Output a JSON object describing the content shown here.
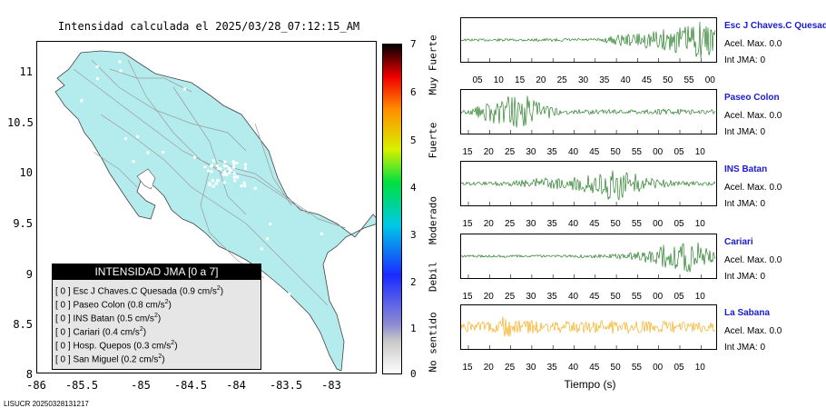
{
  "title": "Intensidad calculada el 2025/03/28_07:12:15_AM",
  "footer": "LISUCR 20250328131217",
  "map": {
    "y_ticks": [
      "11",
      "10.5",
      "10",
      "9.5",
      "9",
      "8.5",
      "8"
    ],
    "x_ticks": [
      "-86",
      "-85.5",
      "-85",
      "-84.5",
      "-84",
      "-83.5",
      "-83"
    ],
    "land_color": "#b4ecee",
    "road_color": "#9a9a9a"
  },
  "legend": {
    "header": "INTENSIDAD JMA [0 a 7]",
    "rows": [
      {
        "bracket": "[ 0 ]",
        "name": "Esc J Chaves.C Quesada",
        "value": "(0.9 cm/s",
        "sup": "2",
        "close": ")"
      },
      {
        "bracket": "[ 0 ]",
        "name": "Paseo Colon",
        "value": "(0.8 cm/s",
        "sup": "2",
        "close": ")"
      },
      {
        "bracket": "[ 0 ]",
        "name": "INS Batan",
        "value": "(0.5 cm/s",
        "sup": "2",
        "close": ")"
      },
      {
        "bracket": "[ 0 ]",
        "name": "Cariari",
        "value": "(0.4 cm/s",
        "sup": "2",
        "close": ")"
      },
      {
        "bracket": "[ 0 ]",
        "name": "Hosp. Quepos",
        "value": "(0.3 cm/s",
        "sup": "2",
        "close": ")"
      },
      {
        "bracket": "[ 0 ]",
        "name": "San Miguel",
        "value": "(0.2 cm/s",
        "sup": "2",
        "close": ")"
      }
    ]
  },
  "colorbar": {
    "ticks": [
      "7",
      "6",
      "5",
      "4",
      "3",
      "2",
      "1",
      "0"
    ],
    "labels": [
      "Muy Fuerte",
      "Fuerte",
      "Moderado",
      "Debil",
      "No sentido"
    ]
  },
  "chart_data": {
    "type": "line",
    "xlabel": "Tiempo (s)",
    "series": [
      {
        "name": "Esc J Chaves.C Quesada",
        "accel_label": "Acel. Max. 0.0",
        "int_label": "Int JMA: 0",
        "color": "#0b6e0b",
        "ticks": [
          "05",
          "10",
          "15",
          "20",
          "25",
          "30",
          "35",
          "40",
          "45",
          "50",
          "55",
          "00"
        ],
        "envelope": [
          [
            0,
            0.06
          ],
          [
            0.55,
            0.08
          ],
          [
            0.6,
            0.25
          ],
          [
            0.7,
            0.35
          ],
          [
            0.8,
            0.55
          ],
          [
            0.9,
            0.75
          ],
          [
            0.95,
            0.95
          ],
          [
            1,
            0.7
          ]
        ]
      },
      {
        "name": "Paseo Colon",
        "accel_label": "Acel. Max. 0.0",
        "int_label": "Int JMA: 0",
        "color": "#0b6e0b",
        "ticks": [
          "15",
          "20",
          "25",
          "30",
          "35",
          "40",
          "45",
          "50",
          "55",
          "00",
          "05",
          "10"
        ],
        "envelope": [
          [
            0,
            0.1
          ],
          [
            0.05,
            0.2
          ],
          [
            0.12,
            0.6
          ],
          [
            0.18,
            0.8
          ],
          [
            0.25,
            0.9
          ],
          [
            0.3,
            0.5
          ],
          [
            0.4,
            0.12
          ],
          [
            0.6,
            0.12
          ],
          [
            0.8,
            0.14
          ],
          [
            1,
            0.12
          ]
        ]
      },
      {
        "name": "INS Batan",
        "accel_label": "Acel. Max. 0.0",
        "int_label": "Int JMA: 0",
        "color": "#0b6e0b",
        "ticks": [
          "15",
          "20",
          "25",
          "30",
          "35",
          "40",
          "45",
          "50",
          "55",
          "00",
          "05",
          "10"
        ],
        "envelope": [
          [
            0,
            0.08
          ],
          [
            0.2,
            0.12
          ],
          [
            0.3,
            0.3
          ],
          [
            0.45,
            0.35
          ],
          [
            0.55,
            0.6
          ],
          [
            0.6,
            0.95
          ],
          [
            0.66,
            0.7
          ],
          [
            0.72,
            0.3
          ],
          [
            0.85,
            0.14
          ],
          [
            1,
            0.1
          ]
        ]
      },
      {
        "name": "Cariari",
        "accel_label": "Acel. Max. 0.0",
        "int_label": "Int JMA: 0",
        "color": "#0b6e0b",
        "ticks": [
          "15",
          "20",
          "25",
          "30",
          "35",
          "40",
          "45",
          "50",
          "55",
          "00",
          "05",
          "10"
        ],
        "envelope": [
          [
            0,
            0.06
          ],
          [
            0.5,
            0.07
          ],
          [
            0.65,
            0.15
          ],
          [
            0.72,
            0.3
          ],
          [
            0.8,
            0.6
          ],
          [
            0.87,
            0.75
          ],
          [
            0.9,
            0.95
          ],
          [
            0.95,
            0.6
          ],
          [
            1,
            0.35
          ]
        ]
      },
      {
        "name": "La Sabana",
        "accel_label": "Acel. Max. 0.0",
        "int_label": "Int JMA: 0",
        "color": "#f5a400",
        "ticks": [
          "15",
          "20",
          "25",
          "30",
          "35",
          "40",
          "45",
          "50",
          "55",
          "00",
          "05",
          "10"
        ],
        "envelope": [
          [
            0,
            0.25
          ],
          [
            0.15,
            0.3
          ],
          [
            0.17,
            0.9
          ],
          [
            0.2,
            0.35
          ],
          [
            0.4,
            0.3
          ],
          [
            0.6,
            0.35
          ],
          [
            0.8,
            0.3
          ],
          [
            1,
            0.25
          ]
        ]
      }
    ]
  }
}
